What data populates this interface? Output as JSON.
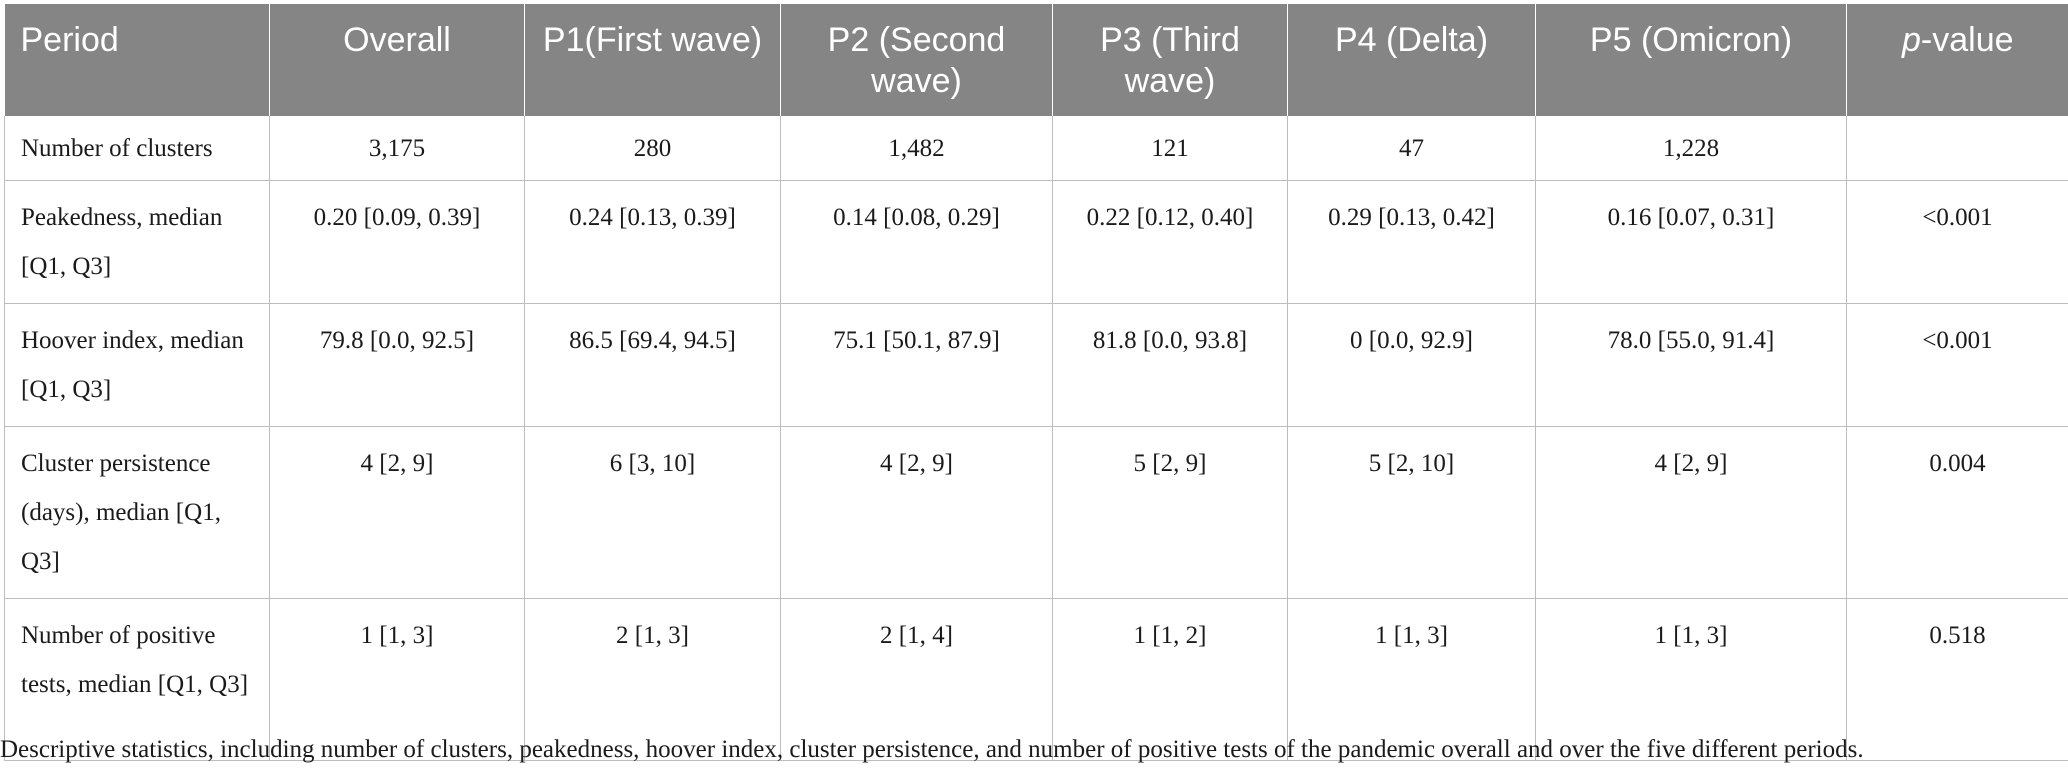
{
  "table": {
    "headers": [
      {
        "id": "period",
        "text": "Period"
      },
      {
        "id": "overall",
        "text": "Overall"
      },
      {
        "id": "p1",
        "text": "P1(First wave)"
      },
      {
        "id": "p2",
        "text": "P2 (Second wave)"
      },
      {
        "id": "p3",
        "text": "P3 (Third wave)"
      },
      {
        "id": "p4",
        "text": "P4 (Delta)"
      },
      {
        "id": "p5",
        "text": "P5 (Omicron)"
      },
      {
        "id": "pvalue_italic",
        "text": "p"
      },
      {
        "id": "pvalue_rest",
        "text": "-value"
      }
    ],
    "rows": [
      {
        "label": "Number of clusters",
        "cells": [
          "3,175",
          "280",
          "1,482",
          "121",
          "47",
          "1,228",
          ""
        ]
      },
      {
        "label": "Peakedness, median [Q1, Q3]",
        "cells": [
          "0.20 [0.09, 0.39]",
          "0.24 [0.13, 0.39]",
          "0.14 [0.08, 0.29]",
          "0.22 [0.12, 0.40]",
          "0.29 [0.13, 0.42]",
          "0.16 [0.07, 0.31]",
          "<0.001"
        ]
      },
      {
        "label": "Hoover index, median [Q1, Q3]",
        "cells": [
          "79.8 [0.0, 92.5]",
          "86.5 [69.4, 94.5]",
          "75.1 [50.1, 87.9]",
          "81.8 [0.0, 93.8]",
          "0 [0.0, 92.9]",
          "78.0 [55.0, 91.4]",
          "<0.001"
        ]
      },
      {
        "label": "Cluster persistence (days), median [Q1, Q3]",
        "cells": [
          "4 [2, 9]",
          "6 [3, 10]",
          "4 [2, 9]",
          "5 [2, 9]",
          "5 [2, 10]",
          "4 [2, 9]",
          "0.004"
        ]
      },
      {
        "label": "Number of positive tests, median [Q1, Q3]",
        "cells": [
          "1 [1, 3]",
          "2 [1, 3]",
          "2 [1, 4]",
          "1 [1, 2]",
          "1 [1, 3]",
          "1 [1, 3]",
          "0.518"
        ]
      }
    ]
  },
  "caption": "Descriptive statistics, including number of clusters, peakedness, hoover index, cluster persistence, and number of positive tests of the pandemic overall and over the five different periods."
}
